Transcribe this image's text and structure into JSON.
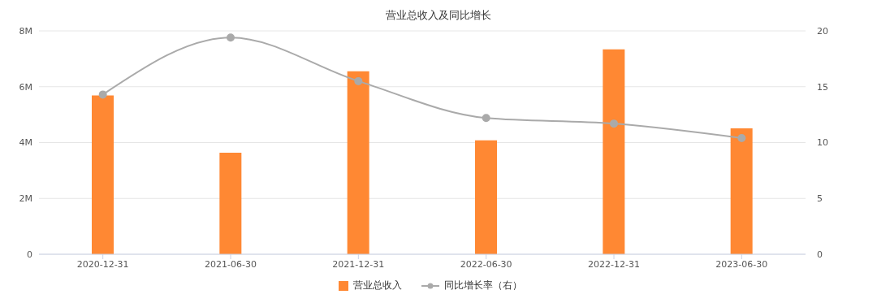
{
  "chart_data": {
    "type": "bar",
    "title": "营业总收入及同比增长",
    "categories": [
      "2020-12-31",
      "2021-06-30",
      "2021-12-31",
      "2022-06-30",
      "2022-12-31",
      "2023-06-30"
    ],
    "series": [
      {
        "name": "营业总收入",
        "color": "#ff8833",
        "values": [
          5690000,
          3640000,
          6550000,
          4080000,
          7340000,
          4510000
        ]
      },
      {
        "name": "同比增长率（右）",
        "type": "line",
        "axis": "y2",
        "color": "#aaaaaa",
        "values": [
          14.3,
          19.4,
          15.5,
          12.2,
          11.7,
          10.4
        ]
      }
    ],
    "ylim": [
      0,
      8000000
    ],
    "yticks": [
      {
        "value": 0,
        "label": "0"
      },
      {
        "value": 2000000,
        "label": "2M"
      },
      {
        "value": 4000000,
        "label": "4M"
      },
      {
        "value": 6000000,
        "label": "6M"
      },
      {
        "value": 8000000,
        "label": "8M"
      }
    ],
    "y2lim": [
      0,
      20
    ],
    "y2ticks": [
      0,
      5,
      10,
      15,
      20
    ],
    "grid": "y",
    "legend": "bottom",
    "marker": "circle",
    "line_style": "solid"
  }
}
